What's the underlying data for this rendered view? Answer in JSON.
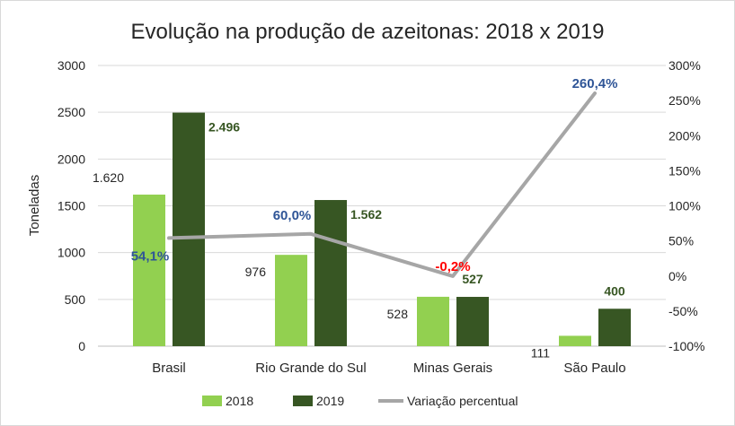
{
  "chart_data": {
    "type": "bar",
    "title": "Evolução na produção de azeitonas: 2018 x 2019",
    "ylabel": "Toneladas",
    "ylabel_right": "",
    "categories": [
      "Brasil",
      "Rio Grande do Sul",
      "Minas Gerais",
      "São Paulo"
    ],
    "ylim": [
      0,
      3000
    ],
    "yticks": [
      "0",
      "500",
      "1000",
      "1500",
      "2000",
      "2500",
      "3000"
    ],
    "ylim_right": [
      -100,
      300
    ],
    "yticks_right": [
      "-100%",
      "-50%",
      "0%",
      "50%",
      "100%",
      "150%",
      "200%",
      "250%",
      "300%"
    ],
    "series": [
      {
        "name": "2018",
        "type": "bar",
        "color": "#92d050",
        "values": [
          1620,
          976,
          528,
          111
        ],
        "labels": [
          "1.620",
          "976",
          "528",
          "111"
        ]
      },
      {
        "name": "2019",
        "type": "bar",
        "color": "#375623",
        "values": [
          2496,
          1562,
          527,
          400
        ],
        "labels": [
          "2.496",
          "1.562",
          "527",
          "400"
        ]
      },
      {
        "name": "Variação percentual",
        "type": "line",
        "axis": "right",
        "color": "#a6a6a6",
        "values": [
          54.1,
          60.0,
          -0.2,
          260.4
        ],
        "labels": [
          "54,1%",
          "60,0%",
          "-0,2%",
          "260,4%"
        ],
        "label_colors": [
          "#2f5597",
          "#2f5597",
          "#ff0000",
          "#2f5597"
        ]
      }
    ],
    "grid": true,
    "legend": "bottom"
  }
}
